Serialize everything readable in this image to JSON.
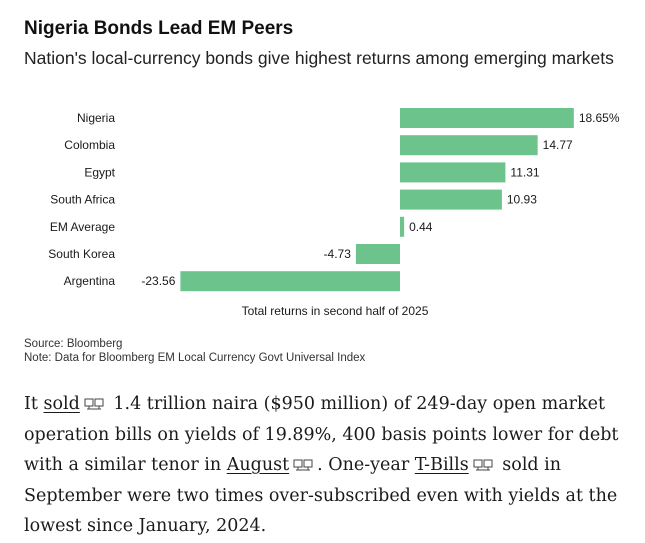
{
  "header": {
    "title": "Nigeria Bonds Lead EM Peers",
    "subtitle": "Nation's local-currency bonds give highest returns among emerging markets"
  },
  "chart_data": {
    "type": "bar",
    "orientation": "horizontal",
    "title": "Nigeria Bonds Lead EM Peers",
    "subtitle": "Nation's local-currency bonds give highest returns among emerging markets",
    "categories": [
      "Nigeria",
      "Colombia",
      "Egypt",
      "South Africa",
      "EM Average",
      "South Korea",
      "Argentina"
    ],
    "values": [
      18.65,
      14.77,
      11.31,
      10.93,
      0.44,
      -4.73,
      -23.56
    ],
    "value_labels": [
      "18.65%",
      "14.77",
      "11.31",
      "10.93",
      "0.44",
      "-4.73",
      "-23.56"
    ],
    "xlabel": "Total returns in second half of 2025",
    "ylabel": "",
    "xlim": [
      -23.56,
      18.65
    ],
    "grid": false,
    "bar_color": "#6cc38c"
  },
  "footer": {
    "source": "Source: Bloomberg",
    "note": "Note: Data for Bloomberg EM Local Currency Govt Universal Index"
  },
  "article": {
    "seg1": "It ",
    "link1": "sold",
    "seg2": " 1.4 trillion naira ($950 million) of 249-day open market operation bills on yields of 19.89%, 400 basis points lower for debt with a similar tenor in ",
    "link2": "August",
    "seg3": ". One-year ",
    "link3": "T-Bills",
    "seg4": " sold in September were two times over-subscribed even with yields at the lowest since January, 2024.",
    "link_icon": "dictionary-icon"
  },
  "colors": {
    "bar": "#6cc38c",
    "text": "#1a1a1a"
  }
}
